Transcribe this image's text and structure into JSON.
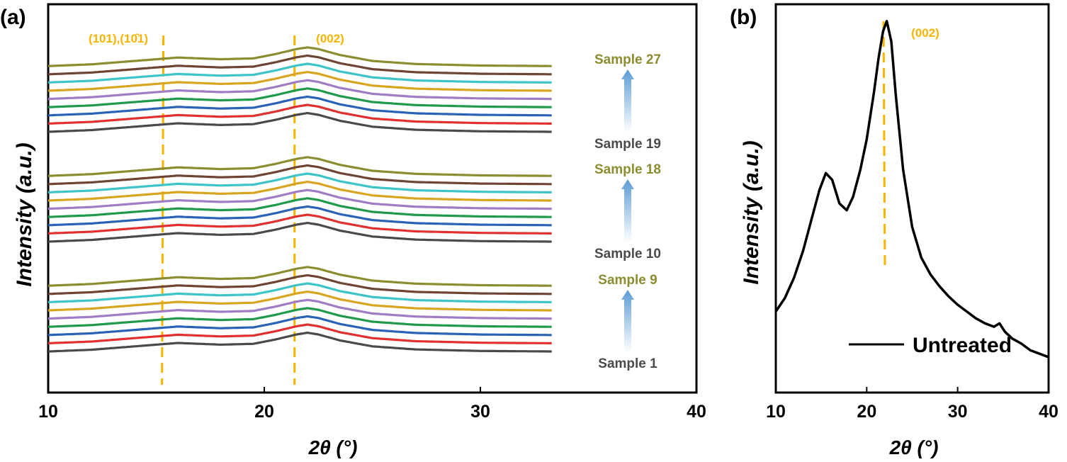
{
  "panels": [
    {
      "label": "(a)"
    },
    {
      "label": "(b)"
    }
  ],
  "chart_data": [
    {
      "panel": "(a)",
      "type": "line",
      "xlabel_main": "2θ (",
      "xlabel_unit": "°)",
      "ylabel": "Intensity (a.u.)",
      "xlim": [
        10,
        40
      ],
      "xticks": [
        "10",
        "20",
        "30",
        "40"
      ],
      "y_ticks_shown": false,
      "data_x_range": [
        10,
        33.3
      ],
      "reference_lines": [
        {
          "x": 15.3,
          "label": "(101),(10̄1)"
        },
        {
          "x": 21.4,
          "label": "(002)"
        }
      ],
      "peak_labels_color": "#f4b400",
      "series_colors": [
        "#4a4a4a",
        "#e03030",
        "#2a62b8",
        "#1f9a4a",
        "#a07cc4",
        "#d9a520",
        "#3cc4c8",
        "#6e4434",
        "#8c8c30"
      ],
      "groups": [
        {
          "start_label": "Sample 1",
          "end_label": "Sample 9",
          "samples": [
            "Sample 1",
            "Sample 2",
            "Sample 3",
            "Sample 4",
            "Sample 5",
            "Sample 6",
            "Sample 7",
            "Sample 8",
            "Sample 9"
          ]
        },
        {
          "start_label": "Sample 10",
          "end_label": "Sample 18",
          "samples": [
            "Sample 10",
            "Sample 11",
            "Sample 12",
            "Sample 13",
            "Sample 14",
            "Sample 15",
            "Sample 16",
            "Sample 17",
            "Sample 18"
          ]
        },
        {
          "start_label": "Sample 19",
          "end_label": "Sample 27",
          "samples": [
            "Sample 19",
            "Sample 20",
            "Sample 21",
            "Sample 22",
            "Sample 23",
            "Sample 24",
            "Sample 25",
            "Sample 26",
            "Sample 27"
          ]
        }
      ],
      "start_label_color": "#4a4a4a",
      "end_label_color": "#8c8c30",
      "arrow_color": "#5b9bd5",
      "curve_profile": {
        "x": [
          10,
          12,
          14,
          16,
          18,
          19.5,
          20.5,
          21.5,
          22,
          22.5,
          23.5,
          25,
          27,
          30,
          33.3
        ],
        "relative_intensity": [
          0.0,
          0.1,
          0.3,
          0.5,
          0.4,
          0.45,
          0.7,
          1.0,
          1.1,
          1.0,
          0.65,
          0.3,
          0.12,
          0.03,
          0.0
        ]
      }
    },
    {
      "panel": "(b)",
      "type": "line",
      "xlabel_main": "2θ (",
      "xlabel_unit": "°)",
      "ylabel": "Intensity (a.u.)",
      "xlim": [
        10,
        40
      ],
      "xticks": [
        "10",
        "20",
        "30",
        "40"
      ],
      "y_ticks_shown": false,
      "reference_lines": [
        {
          "x": 22,
          "label": "(002)"
        }
      ],
      "series": [
        {
          "name": "Untreated",
          "color": "#000000",
          "x": [
            10,
            11,
            12,
            13,
            14,
            14.8,
            15.5,
            16.2,
            17,
            17.8,
            18.5,
            19.3,
            20,
            20.8,
            21.3,
            21.8,
            22.2,
            22.7,
            23.2,
            24,
            25,
            26,
            27,
            28,
            29,
            30,
            31,
            32,
            33,
            34,
            34.6,
            35.2,
            36,
            37,
            38,
            39,
            40
          ],
          "y": [
            24,
            28,
            34,
            42,
            52,
            60,
            65,
            63,
            56,
            54,
            58,
            66,
            75,
            89,
            99,
            107,
            110,
            104,
            88,
            66,
            49,
            40,
            35,
            31.5,
            28.5,
            26,
            24,
            22,
            20.5,
            19.5,
            20.5,
            18,
            16,
            14.5,
            12.5,
            11.5,
            10.5
          ]
        }
      ]
    }
  ]
}
